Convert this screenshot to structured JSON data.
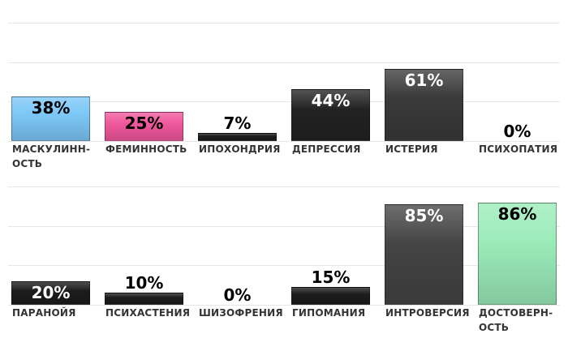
{
  "chart_data": [
    {
      "type": "bar",
      "categories": [
        "МАСКУЛИНН-\nОСТЬ",
        "ФЕМИННОСТЬ",
        "ИПОХОНДРИЯ",
        "ДЕПРЕССИЯ",
        "ИСТЕРИЯ",
        "ПСИХОПАТИЯ"
      ],
      "values": [
        38,
        25,
        7,
        44,
        61,
        0
      ],
      "value_labels": [
        "38%",
        "25%",
        "7%",
        "44%",
        "61%",
        "0%"
      ],
      "colors": [
        "#7cc7f7",
        "#f0579c",
        "#1c1c1c",
        "#222222",
        "#3a3a3a",
        "#222222"
      ],
      "ylim": [
        0,
        100
      ],
      "yticks": [
        0,
        33.3,
        66.7,
        100
      ],
      "grid": true
    },
    {
      "type": "bar",
      "categories": [
        "ПАРАНОЙЯ",
        "ПСИХАСТЕНИЯ",
        "ШИЗОФРЕНИЯ",
        "ГИПОМАНИЯ",
        "ИНТРОВЕРСИЯ",
        "ДОСТОВЕРН-\nОСТЬ"
      ],
      "values": [
        20,
        10,
        0,
        15,
        85,
        86
      ],
      "value_labels": [
        "20%",
        "10%",
        "0%",
        "15%",
        "85%",
        "86%"
      ],
      "colors": [
        "#1c1c1c",
        "#1c1c1c",
        "#222222",
        "#1c1c1c",
        "#444444",
        "#9aebb8"
      ],
      "ylim": [
        0,
        100
      ],
      "yticks": [
        0,
        33.3,
        66.7,
        100
      ],
      "grid": true
    }
  ]
}
